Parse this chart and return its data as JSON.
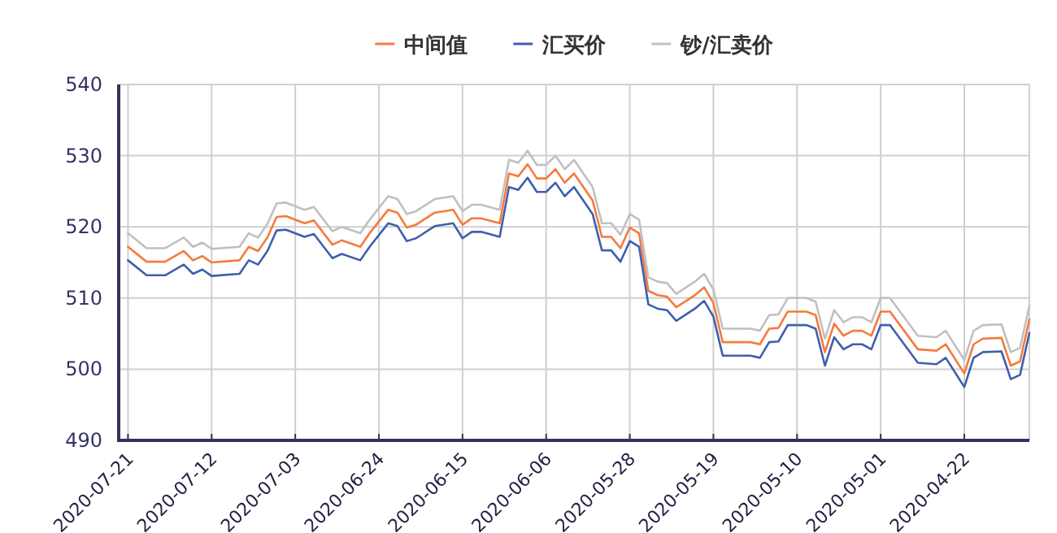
{
  "chart_data": {
    "type": "line",
    "x": [
      "2020-07-21",
      "2020-07-19",
      "2020-07-17",
      "2020-07-15",
      "2020-07-14",
      "2020-07-13",
      "2020-07-12",
      "2020-07-09",
      "2020-07-08",
      "2020-07-07",
      "2020-07-06",
      "2020-07-05",
      "2020-07-04",
      "2020-07-02",
      "2020-07-01",
      "2020-06-29",
      "2020-06-28",
      "2020-06-26",
      "2020-06-25",
      "2020-06-23",
      "2020-06-22",
      "2020-06-21",
      "2020-06-20",
      "2020-06-18",
      "2020-06-16",
      "2020-06-15",
      "2020-06-14",
      "2020-06-13",
      "2020-06-11",
      "2020-06-10",
      "2020-06-09",
      "2020-06-08",
      "2020-06-07",
      "2020-06-06",
      "2020-06-05",
      "2020-06-04",
      "2020-06-03",
      "2020-06-01",
      "2020-05-31",
      "2020-05-30",
      "2020-05-29",
      "2020-05-28",
      "2020-05-27",
      "2020-05-26",
      "2020-05-25",
      "2020-05-24",
      "2020-05-23",
      "2020-05-21",
      "2020-05-20",
      "2020-05-19",
      "2020-05-18",
      "2020-05-15",
      "2020-05-14",
      "2020-05-13",
      "2020-05-12",
      "2020-05-11",
      "2020-05-09",
      "2020-05-08",
      "2020-05-07",
      "2020-05-06",
      "2020-05-05",
      "2020-05-04",
      "2020-05-03",
      "2020-05-02",
      "2020-05-01",
      "2020-04-30",
      "2020-04-27",
      "2020-04-25",
      "2020-04-24",
      "2020-04-22",
      "2020-04-21",
      "2020-04-20",
      "2020-04-18",
      "2020-04-17",
      "2020-04-16",
      "2020-04-15"
    ],
    "series": [
      {
        "name": "中间值",
        "color": "#f47b3c",
        "values": [
          517.2,
          515.1,
          515.1,
          516.6,
          515.3,
          515.9,
          515.0,
          515.3,
          517.2,
          516.6,
          518.5,
          521.4,
          521.5,
          520.5,
          520.9,
          517.5,
          518.1,
          517.2,
          519.1,
          522.4,
          522.0,
          519.9,
          520.3,
          522.0,
          522.4,
          520.3,
          521.2,
          521.2,
          520.5,
          527.5,
          527.1,
          528.8,
          526.8,
          526.8,
          528.1,
          526.2,
          527.5,
          523.7,
          518.6,
          518.6,
          517.0,
          519.9,
          519.1,
          511.0,
          510.4,
          510.2,
          508.7,
          510.4,
          511.5,
          509.3,
          503.8,
          503.8,
          503.5,
          505.7,
          505.8,
          508.1,
          508.1,
          507.6,
          502.4,
          506.4,
          504.7,
          505.4,
          505.4,
          504.7,
          508.1,
          508.1,
          502.8,
          502.6,
          503.5,
          499.4,
          503.5,
          504.3,
          504.4,
          500.5,
          501.1,
          507.0
        ]
      },
      {
        "name": "汇买价",
        "color": "#3f5fae",
        "values": [
          515.3,
          513.2,
          513.2,
          514.7,
          513.4,
          514.0,
          513.1,
          513.4,
          515.3,
          514.7,
          516.6,
          519.5,
          519.6,
          518.6,
          519.0,
          515.6,
          516.2,
          515.3,
          517.2,
          520.5,
          520.1,
          518.0,
          518.4,
          520.1,
          520.5,
          518.4,
          519.3,
          519.3,
          518.6,
          525.6,
          525.2,
          526.9,
          524.9,
          524.9,
          526.2,
          524.3,
          525.6,
          521.8,
          516.7,
          516.7,
          515.1,
          518.0,
          517.2,
          509.1,
          508.5,
          508.3,
          506.8,
          508.5,
          509.6,
          507.4,
          501.9,
          501.9,
          501.6,
          503.8,
          503.9,
          506.2,
          506.2,
          505.7,
          500.5,
          504.5,
          502.8,
          503.5,
          503.5,
          502.8,
          506.2,
          506.2,
          500.9,
          500.7,
          501.6,
          497.5,
          501.6,
          502.4,
          502.5,
          498.6,
          499.2,
          505.1
        ]
      },
      {
        "name": "钞/汇卖价",
        "color": "#c0c0c0",
        "values": [
          519.1,
          517.0,
          517.0,
          518.5,
          517.2,
          517.8,
          516.9,
          517.2,
          519.1,
          518.5,
          520.4,
          523.3,
          523.4,
          522.4,
          522.8,
          519.4,
          520.0,
          519.1,
          521.0,
          524.3,
          523.9,
          521.8,
          522.2,
          523.9,
          524.3,
          522.2,
          523.1,
          523.1,
          522.4,
          529.4,
          529.0,
          530.7,
          528.7,
          528.7,
          530.0,
          528.1,
          529.4,
          525.6,
          520.5,
          520.5,
          518.9,
          521.8,
          521.0,
          512.9,
          512.3,
          512.1,
          510.6,
          512.3,
          513.4,
          511.2,
          505.7,
          505.7,
          505.4,
          507.6,
          507.7,
          510.0,
          510.0,
          509.5,
          504.3,
          508.3,
          506.6,
          507.3,
          507.3,
          506.6,
          510.0,
          510.0,
          504.7,
          504.5,
          505.4,
          501.3,
          505.4,
          506.2,
          506.3,
          502.4,
          503.0,
          508.9
        ]
      }
    ],
    "xlim": [
      "2020-07-22",
      "2020-04-15"
    ],
    "xticks": [
      "2020-07-21",
      "2020-07-12",
      "2020-07-03",
      "2020-06-24",
      "2020-06-15",
      "2020-06-06",
      "2020-05-28",
      "2020-05-19",
      "2020-05-10",
      "2020-05-01",
      "2020-04-22"
    ],
    "ylim": [
      490,
      540
    ],
    "yticks": [
      490,
      500,
      510,
      520,
      530,
      540
    ],
    "grid": true,
    "legend": "top",
    "marker": "none",
    "line_style": "solid"
  }
}
